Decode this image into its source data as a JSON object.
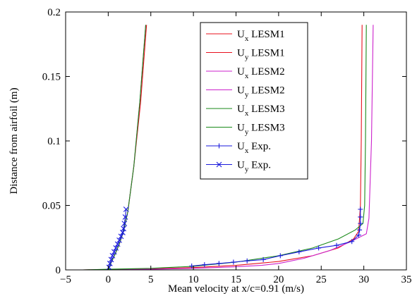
{
  "chart_data": {
    "type": "line",
    "title": "",
    "xlabel": "Mean velocity at x/c=0.91 (m/s)",
    "ylabel": "Distance from airfoil (m)",
    "xlim": [
      -5,
      35
    ],
    "ylim": [
      0,
      0.2
    ],
    "xticks": [
      -5,
      0,
      5,
      10,
      15,
      20,
      25,
      30,
      35
    ],
    "xtick_labels": [
      "−5",
      "0",
      "5",
      "10",
      "15",
      "20",
      "25",
      "30",
      "35"
    ],
    "yticks": [
      0,
      0.05,
      0.1,
      0.15,
      0.2
    ],
    "ytick_labels": [
      "0",
      "0.05",
      "0.1",
      "0.15",
      "0.2"
    ],
    "grid": false,
    "legend_position": "top-right",
    "series": [
      {
        "name": "Ux LESM1",
        "base": "U",
        "sub": "x",
        "suffix": "LESM1",
        "color": "#e8101e",
        "marker": "none",
        "x": [
          -3,
          0,
          5,
          10,
          15,
          20,
          24,
          27,
          28.8,
          29.4,
          29.6,
          29.7,
          29.8
        ],
        "y": [
          0,
          0.0003,
          0.0008,
          0.0018,
          0.0035,
          0.0065,
          0.011,
          0.017,
          0.024,
          0.03,
          0.05,
          0.1,
          0.19
        ]
      },
      {
        "name": "Uy LESM1",
        "base": "U",
        "sub": "y",
        "suffix": "LESM1",
        "color": "#e8101e",
        "marker": "none",
        "x": [
          0,
          0.3,
          0.8,
          1.3,
          1.8,
          2.3,
          3.0,
          3.8,
          4.5
        ],
        "y": [
          0,
          0.005,
          0.012,
          0.02,
          0.03,
          0.045,
          0.08,
          0.13,
          0.19
        ]
      },
      {
        "name": "Ux LESM2",
        "base": "U",
        "sub": "x",
        "suffix": "LESM2",
        "color": "#cc22cc",
        "marker": "none",
        "x": [
          -3,
          0,
          5,
          10,
          15,
          18,
          20,
          23,
          26,
          28.5,
          30.3,
          30.6,
          30.9,
          31.1
        ],
        "y": [
          0,
          0.0002,
          0.0005,
          0.0012,
          0.0024,
          0.0035,
          0.005,
          0.009,
          0.015,
          0.022,
          0.028,
          0.04,
          0.1,
          0.19
        ]
      },
      {
        "name": "Uy LESM2",
        "base": "U",
        "sub": "y",
        "suffix": "LESM2",
        "color": "#cc22cc",
        "marker": "none",
        "x": [
          0,
          0.3,
          0.8,
          1.3,
          1.8,
          2.3,
          3.0,
          3.7,
          4.4
        ],
        "y": [
          0,
          0.005,
          0.012,
          0.02,
          0.03,
          0.045,
          0.08,
          0.13,
          0.19
        ]
      },
      {
        "name": "Ux LESM3",
        "base": "U",
        "sub": "x",
        "suffix": "LESM3",
        "color": "#1a8a1a",
        "marker": "none",
        "x": [
          -3,
          0,
          5,
          10,
          15,
          20,
          24,
          27,
          29,
          29.9,
          30.1,
          30.2,
          30.3
        ],
        "y": [
          0,
          0.0005,
          0.0012,
          0.0028,
          0.006,
          0.011,
          0.017,
          0.024,
          0.031,
          0.036,
          0.05,
          0.1,
          0.19
        ]
      },
      {
        "name": "Uy LESM3",
        "base": "U",
        "sub": "y",
        "suffix": "LESM3",
        "color": "#1a8a1a",
        "marker": "none",
        "x": [
          0,
          0.3,
          0.8,
          1.3,
          1.8,
          2.3,
          3.0,
          3.7,
          4.4
        ],
        "y": [
          0,
          0.005,
          0.012,
          0.02,
          0.03,
          0.045,
          0.08,
          0.13,
          0.19
        ]
      },
      {
        "name": "Ux Exp.",
        "base": "U",
        "sub": "x",
        "suffix": "Exp.",
        "color": "#1a1adc",
        "marker": "plus",
        "x": [
          9.8,
          11.3,
          13.0,
          14.7,
          16.3,
          18.2,
          20.2,
          22.4,
          24.7,
          26.8,
          28.6,
          29.4,
          29.5,
          29.6,
          29.6,
          29.6
        ],
        "y": [
          0.003,
          0.004,
          0.005,
          0.006,
          0.007,
          0.008,
          0.011,
          0.014,
          0.017,
          0.019,
          0.022,
          0.027,
          0.031,
          0.036,
          0.041,
          0.047
        ]
      },
      {
        "name": "Uy Exp.",
        "base": "U",
        "sub": "y",
        "suffix": "Exp.",
        "color": "#1a1adc",
        "marker": "x",
        "x": [
          0.1,
          0.2,
          0.35,
          0.5,
          0.7,
          0.9,
          1.1,
          1.3,
          1.5,
          1.7,
          1.8,
          1.9,
          2.0,
          2.1
        ],
        "y": [
          0.002,
          0.005,
          0.008,
          0.011,
          0.014,
          0.017,
          0.02,
          0.023,
          0.026,
          0.029,
          0.032,
          0.036,
          0.041,
          0.047
        ]
      }
    ]
  }
}
